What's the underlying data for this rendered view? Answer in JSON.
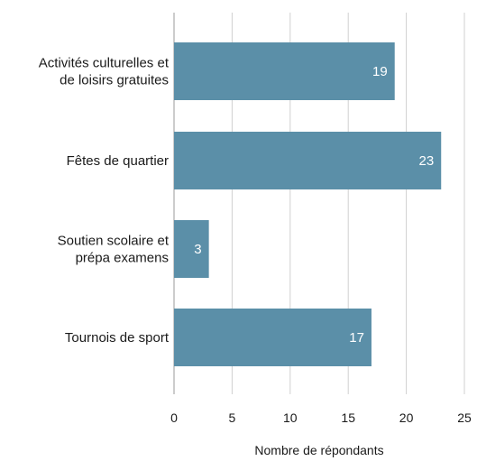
{
  "chart_data": {
    "type": "bar",
    "orientation": "horizontal",
    "categories": [
      [
        "Activités culturelles et",
        "de loisirs gratuites"
      ],
      [
        "Fêtes de quartier"
      ],
      [
        "Soutien scolaire et",
        "prépa examens"
      ],
      [
        "Tournois de sport"
      ]
    ],
    "values": [
      19,
      23,
      3,
      17
    ],
    "title": "",
    "xlabel": "Nombre de répondants",
    "ylabel": "",
    "xlim": [
      0,
      25
    ],
    "xticks": [
      0,
      5,
      10,
      15,
      20,
      25
    ],
    "grid": "vertical",
    "legend": "none",
    "bar_color": "#5b8fa8",
    "gridline_color": "#d0d0d0",
    "value_label_color": "#ffffff"
  }
}
